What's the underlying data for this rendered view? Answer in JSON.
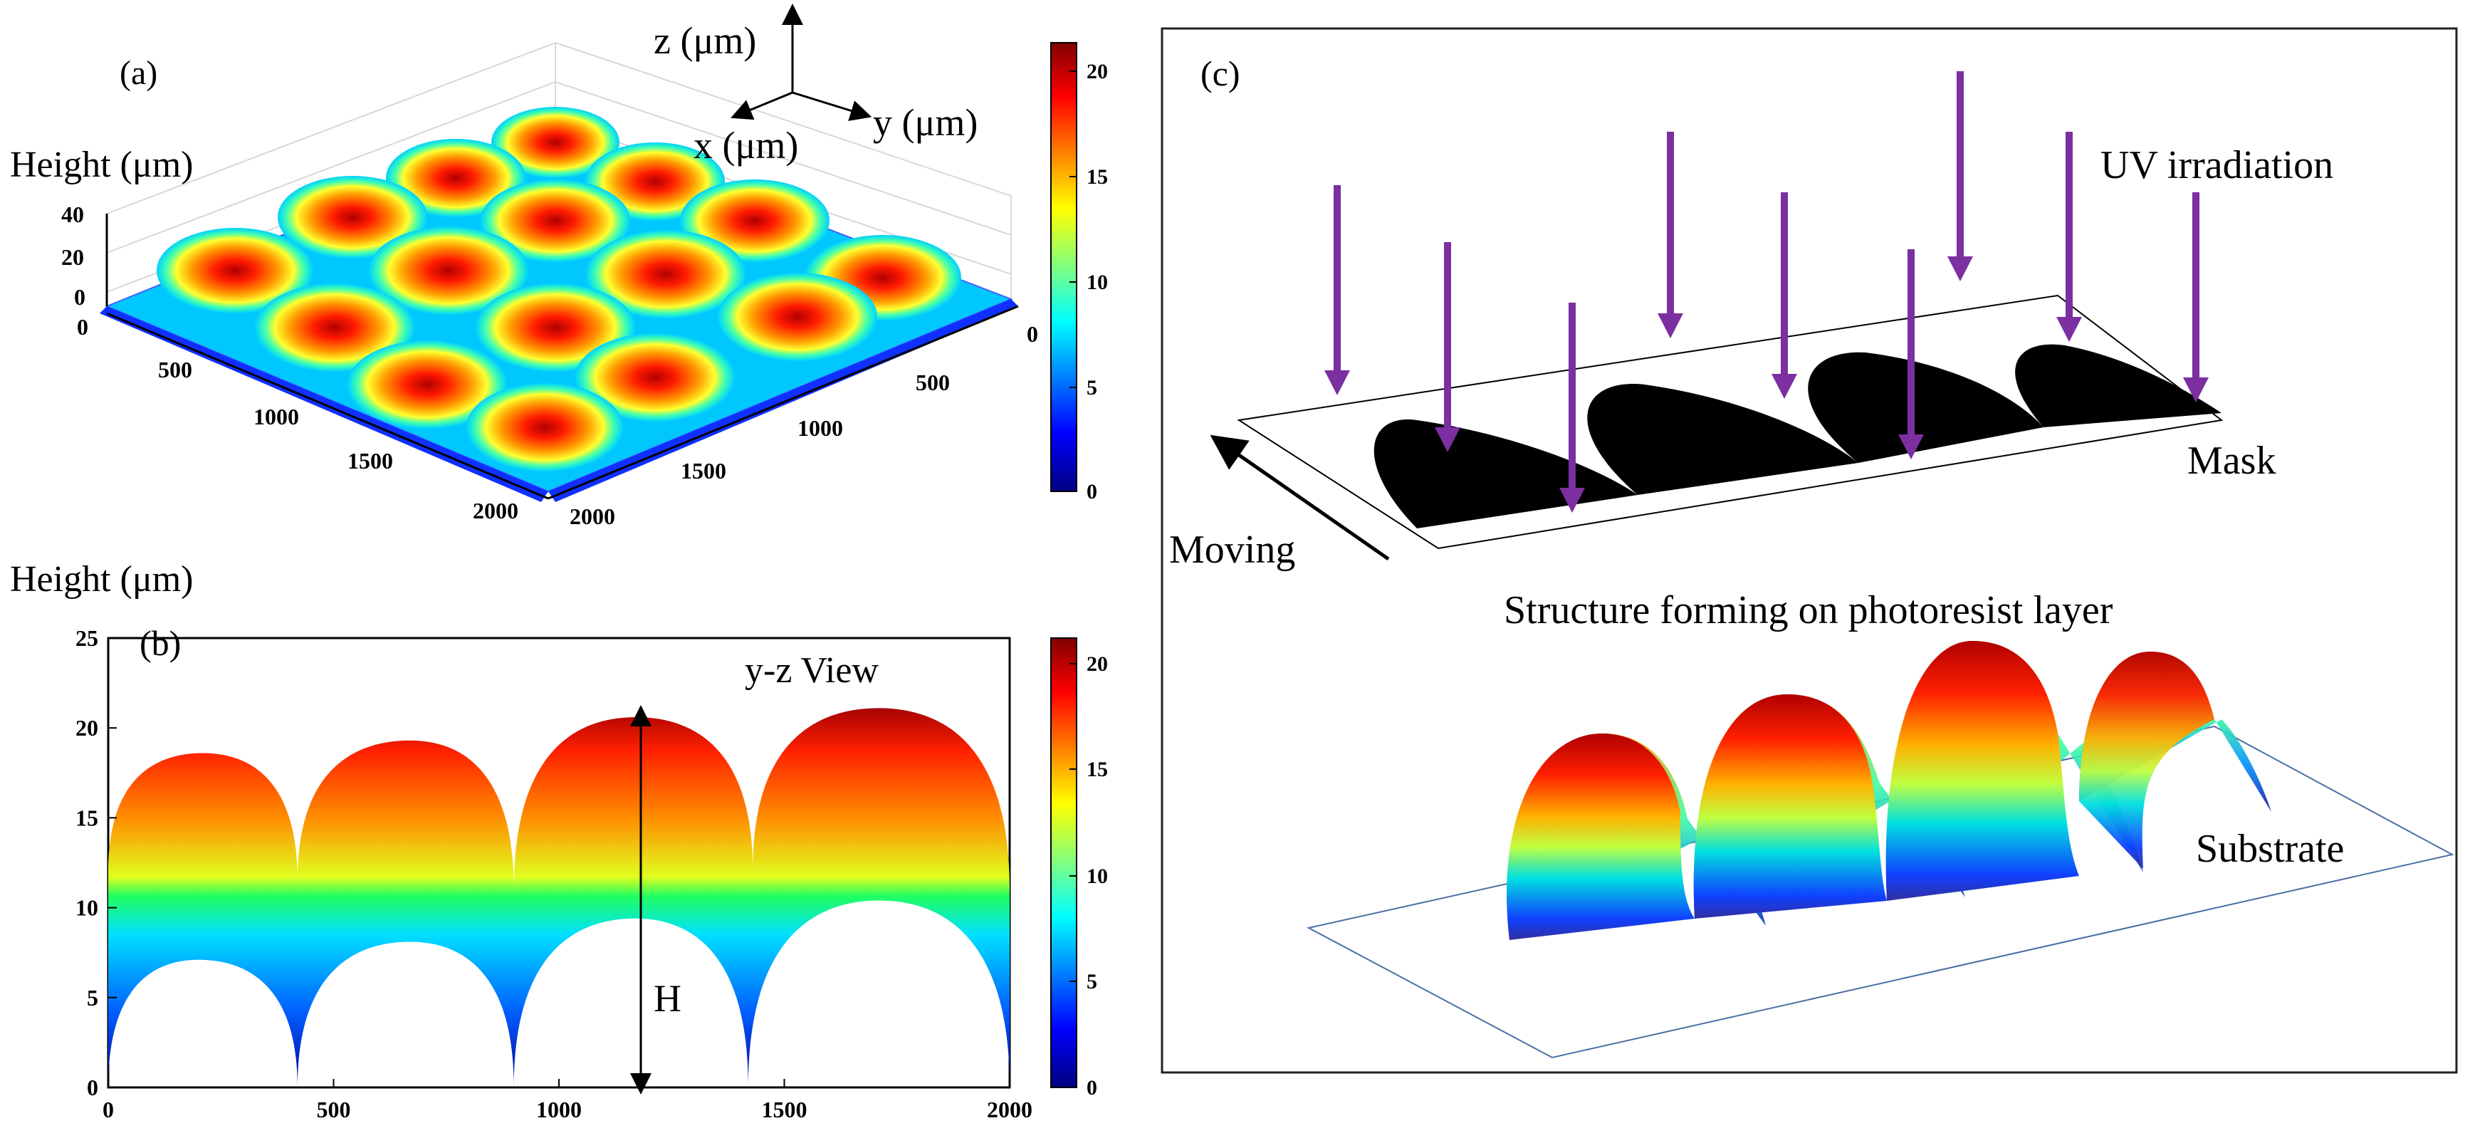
{
  "panel_a": {
    "label": "(a)",
    "height_label": "Height (μm)",
    "z_ticks": [
      "40",
      "20",
      "0"
    ],
    "x_ticks": [
      "0",
      "500",
      "1000",
      "1500",
      "2000"
    ],
    "y_ticks": [
      "0",
      "500",
      "1000",
      "1500",
      "2000"
    ],
    "axis_z": "z (μm)",
    "axis_x": "x (μm)",
    "axis_y": "y (μm)",
    "colorbar_ticks": [
      "20",
      "15",
      "10",
      "5",
      "0"
    ]
  },
  "panel_b": {
    "label": "(b)",
    "height_label": "Height (μm)",
    "view_label": "y-z View",
    "h_label": "H",
    "colorbar_ticks": [
      "20",
      "15",
      "10",
      "5",
      "0"
    ]
  },
  "panel_c": {
    "label": "(c)",
    "uv_label": "UV irradiation",
    "mask_label": "Mask",
    "moving_label": "Moving",
    "structure_label": "Structure forming on photoresist layer",
    "substrate_label": "Substrate"
  },
  "colors": {
    "arrow_purple": "#7b2fa0",
    "jet_dark_red": "#800000",
    "jet_red": "#ff0000",
    "jet_yellow": "#ffff00",
    "jet_cyan": "#00ffff",
    "jet_blue": "#0000ff",
    "jet_dark_blue": "#000080"
  },
  "chart_data": {
    "type": "line",
    "title": "y-z View",
    "xlabel": "",
    "ylabel": "Height (μm)",
    "xlim": [
      0,
      2000
    ],
    "ylim": [
      0,
      25
    ],
    "x_ticks": [
      0,
      500,
      1000,
      1500,
      2000
    ],
    "y_ticks": [
      0,
      5,
      10,
      15,
      20,
      25
    ],
    "series": [
      {
        "name": "upper profile",
        "x": [
          0,
          210,
          420,
          670,
          900,
          1170,
          1430,
          1710,
          2000
        ],
        "values": [
          12,
          18.6,
          11.5,
          19.3,
          11,
          20.6,
          12.1,
          21.1,
          11
        ]
      },
      {
        "name": "lower profile",
        "x": [
          0,
          200,
          420,
          670,
          900,
          1170,
          1420,
          1710,
          2000
        ],
        "values": [
          0,
          7.1,
          0,
          8.1,
          0,
          9.4,
          0,
          10.4,
          0
        ]
      }
    ],
    "annotation": "H"
  }
}
